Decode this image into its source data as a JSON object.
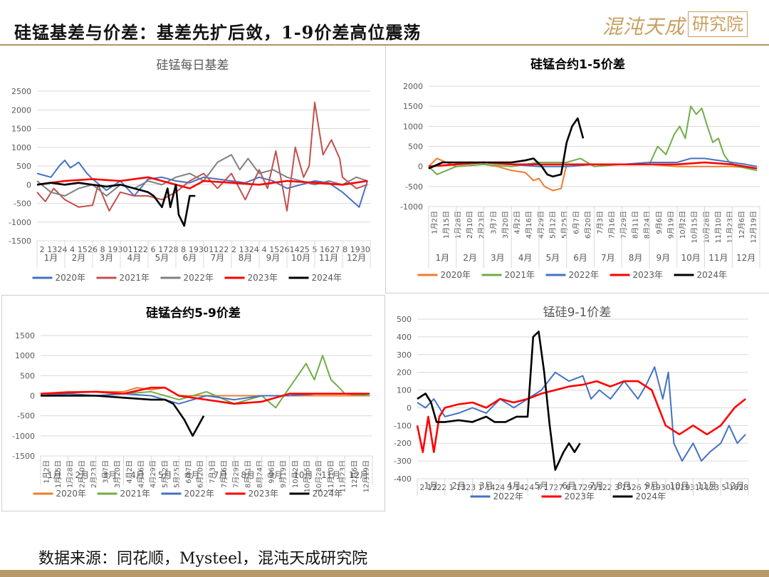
{
  "page": {
    "title": "硅锰基差与价差：基差先扩后敛，1-9价差高位震荡",
    "logo_main": "混沌天成",
    "logo_box": "研究院",
    "source": "数据来源：同花顺，Mysteel，混沌天成研究院"
  },
  "colors": {
    "2020年": "#ed7d31",
    "2021年": "#70ad47",
    "2022年": "#4472c4",
    "2023年": "#ff0000",
    "2024年": "#000000"
  },
  "chart_data": [
    {
      "type": "line",
      "title": "硅锰每日基差",
      "ylim": [
        -1500,
        2500
      ],
      "yticks": [
        -1500,
        -1000,
        -500,
        0,
        500,
        1000,
        1500,
        2000,
        2500
      ],
      "xticks": [
        "2",
        "13",
        "24",
        "4",
        "15",
        "26",
        "8",
        "19",
        "30",
        "11",
        "22",
        "6",
        "17",
        "28",
        "8",
        "19",
        "30",
        "11",
        "22",
        "2",
        "13",
        "24",
        "4",
        "15",
        "26",
        "14",
        "25",
        "5",
        "16",
        "27",
        "8",
        "19",
        "30"
      ],
      "months": [
        "1月",
        "2月",
        "3月",
        "4月",
        "5月",
        "6月",
        "7月",
        "8月",
        "9月",
        "10月",
        "11月",
        "12月"
      ],
      "colors": {
        "2020年": "#4472c4",
        "2021年": "#c0504d",
        "2022年": "#808080",
        "2023年": "#ff0000",
        "2024年": "#000000"
      },
      "series": [
        {
          "name": "2020年",
          "x": [
            0,
            0.5,
            0.8,
            1,
            1.2,
            1.5,
            1.8,
            2,
            2.5,
            3,
            3.5,
            4,
            4.5,
            5,
            5.5,
            6,
            6.5,
            7,
            7.5,
            8,
            8.5,
            9,
            9.5,
            10,
            10.5,
            11,
            11.3,
            11.6,
            11.9
          ],
          "y": [
            300,
            200,
            500,
            650,
            450,
            600,
            300,
            150,
            -150,
            100,
            -300,
            150,
            200,
            100,
            50,
            200,
            150,
            100,
            50,
            200,
            100,
            -100,
            0,
            100,
            50,
            -200,
            -400,
            -600,
            100
          ]
        },
        {
          "name": "2021年",
          "x": [
            0,
            0.3,
            0.6,
            1,
            1.5,
            2,
            2.2,
            2.6,
            3,
            3.5,
            4,
            4.5,
            5,
            5.5,
            6,
            6.5,
            7,
            7.5,
            8,
            8.3,
            8.6,
            9,
            9.3,
            9.6,
            9.8,
            10,
            10.3,
            10.6,
            10.9,
            11,
            11.5,
            11.9
          ],
          "y": [
            -200,
            -450,
            -100,
            -400,
            -600,
            -550,
            0,
            -700,
            -200,
            -300,
            -300,
            -400,
            -200,
            100,
            300,
            -100,
            300,
            -400,
            400,
            -100,
            900,
            -700,
            1000,
            200,
            500,
            2200,
            800,
            1200,
            700,
            200,
            -100,
            0
          ]
        },
        {
          "name": "2022年",
          "x": [
            0,
            0.5,
            1,
            1.5,
            2,
            2.5,
            3,
            3.5,
            4,
            4.5,
            5,
            5.5,
            6,
            6.5,
            7,
            7.3,
            7.6,
            8,
            8.5,
            9,
            9.5,
            10,
            10.5,
            11,
            11.5,
            11.9
          ],
          "y": [
            100,
            -200,
            -300,
            -100,
            0,
            -300,
            0,
            -100,
            100,
            0,
            200,
            300,
            100,
            600,
            800,
            400,
            700,
            300,
            400,
            200,
            100,
            0,
            100,
            0,
            200,
            100
          ]
        },
        {
          "name": "2023年",
          "x": [
            0,
            1,
            2,
            3,
            4,
            4.5,
            5,
            5.5,
            6,
            7,
            8,
            9,
            10,
            11,
            11.9
          ],
          "y": [
            0,
            100,
            150,
            100,
            200,
            100,
            0,
            -100,
            100,
            50,
            0,
            100,
            50,
            0,
            100
          ]
        },
        {
          "name": "2024年",
          "x": [
            0,
            0.5,
            1,
            1.5,
            2,
            2.5,
            3,
            3.5,
            4,
            4.2,
            4.5,
            4.7,
            4.8,
            5,
            5.1,
            5.3,
            5.5,
            5.7
          ],
          "y": [
            0,
            50,
            0,
            50,
            0,
            -50,
            0,
            -100,
            -200,
            -300,
            -600,
            -100,
            -600,
            0,
            -800,
            -1100,
            -300,
            -300
          ]
        }
      ],
      "legend": [
        "2020年",
        "2021年",
        "2022年",
        "2023年",
        "2024年"
      ]
    },
    {
      "type": "line",
      "title": "硅锰合约1-5价差",
      "ylim": [
        -1000,
        2000
      ],
      "yticks": [
        -1000,
        -500,
        0,
        500,
        1000,
        1500,
        2000
      ],
      "xticks": [
        "1月2日",
        "1月15日",
        "1月28日",
        "2月10日",
        "2月23日",
        "3月7日",
        "3月20日",
        "4月2日",
        "4月16日",
        "4月29日",
        "5月12日",
        "5月25日",
        "6月7日",
        "6月20日",
        "7月3日",
        "7月16日",
        "7月29日",
        "8月11日",
        "8月24日",
        "9月6日",
        "9月19日",
        "10月2日",
        "10月15日",
        "10月28日",
        "11月10日",
        "11月23日",
        "12月6日",
        "12月19日"
      ],
      "months": [
        "1月",
        "2月",
        "3月",
        "4月",
        "5月",
        "6月",
        "7月",
        "8月",
        "9月",
        "10月",
        "11月",
        "12月"
      ],
      "series": [
        {
          "name": "2020年",
          "x": [
            0,
            0.3,
            1,
            2,
            2.5,
            3,
            3.5,
            3.8,
            4,
            4.2,
            4.5,
            4.8,
            5,
            6,
            7,
            8,
            9,
            10,
            11,
            11.9
          ],
          "y": [
            0,
            200,
            0,
            50,
            0,
            -100,
            -150,
            -350,
            -300,
            -500,
            -600,
            -550,
            50,
            50,
            50,
            50,
            0,
            0,
            0,
            -50
          ]
        },
        {
          "name": "2021年",
          "x": [
            0,
            0.3,
            1,
            2,
            3,
            4,
            5,
            5.5,
            6,
            7,
            8,
            8.3,
            8.6,
            8.9,
            9.1,
            9.3,
            9.5,
            9.7,
            9.9,
            10.1,
            10.3,
            10.5,
            10.7,
            10.9,
            11.2,
            11.9
          ],
          "y": [
            0,
            -200,
            0,
            50,
            0,
            100,
            100,
            200,
            0,
            50,
            50,
            500,
            300,
            800,
            1000,
            700,
            1500,
            1300,
            1450,
            1000,
            600,
            700,
            300,
            100,
            0,
            -100
          ]
        },
        {
          "name": "2022年",
          "x": [
            0,
            1,
            2,
            3,
            4,
            5,
            6,
            7,
            8,
            9,
            9.5,
            10,
            10.5,
            11,
            11.5,
            11.9
          ],
          "y": [
            0,
            50,
            100,
            50,
            0,
            0,
            50,
            50,
            100,
            100,
            200,
            200,
            150,
            100,
            50,
            0
          ]
        },
        {
          "name": "2023年",
          "x": [
            0,
            1,
            2,
            3,
            4,
            5,
            6,
            7,
            8,
            9,
            10,
            11,
            11.9
          ],
          "y": [
            0,
            50,
            100,
            50,
            50,
            50,
            50,
            50,
            50,
            50,
            100,
            50,
            -50
          ]
        },
        {
          "name": "2024年",
          "x": [
            0,
            0.5,
            1,
            2,
            3,
            3.5,
            3.8,
            4.1,
            4.3,
            4.5,
            4.8,
            5,
            5.2,
            5.4,
            5.6
          ],
          "y": [
            -50,
            100,
            100,
            100,
            100,
            150,
            200,
            0,
            -200,
            -250,
            -200,
            600,
            1000,
            1200,
            700
          ]
        }
      ],
      "legend": [
        "2020年",
        "2021年",
        "2022年",
        "2023年",
        "2024年"
      ]
    },
    {
      "type": "line",
      "title": "硅锰合约5-9价差",
      "ylim": [
        -1500,
        1500
      ],
      "yticks": [
        -1500,
        -1000,
        -500,
        0,
        500,
        1000,
        1500
      ],
      "xticks": [
        "1月2日",
        "1月15日",
        "1月28日",
        "2月10日",
        "2月23日",
        "3月7日",
        "3月20日",
        "4月2日",
        "4月16日",
        "4月29日",
        "5月12日",
        "5月25日",
        "6月7日",
        "6月20日",
        "7月3日",
        "7月16日",
        "7月29日",
        "8月11日",
        "8月24日",
        "9月6日",
        "9月19日",
        "10月2日",
        "10月15日",
        "10月28日",
        "11月10日",
        "11月23日",
        "12月6日",
        "12月19日"
      ],
      "months": [
        "1月",
        "2月",
        "3月",
        "4月",
        "5月",
        "6月",
        "7月",
        "8月",
        "9月",
        "10月",
        "11月",
        "12月"
      ],
      "series": [
        {
          "name": "2020年",
          "x": [
            0,
            1,
            2,
            3,
            3.5,
            4,
            4.5,
            5,
            6,
            7,
            8,
            9,
            10,
            11,
            11.9
          ],
          "y": [
            50,
            100,
            100,
            100,
            200,
            150,
            200,
            0,
            0,
            0,
            0,
            0,
            0,
            0,
            0
          ]
        },
        {
          "name": "2021年",
          "x": [
            0,
            1,
            2,
            3,
            4,
            5,
            6,
            7,
            8,
            8.5,
            9,
            9.3,
            9.6,
            9.9,
            10.2,
            10.5,
            10.8,
            11,
            11.9
          ],
          "y": [
            0,
            50,
            0,
            50,
            100,
            -100,
            100,
            -200,
            0,
            -300,
            200,
            500,
            800,
            400,
            1000,
            400,
            200,
            50,
            0
          ]
        },
        {
          "name": "2022年",
          "x": [
            0,
            1,
            2,
            3,
            4,
            5,
            6,
            7,
            8,
            9,
            10,
            11,
            11.9
          ],
          "y": [
            0,
            50,
            0,
            50,
            0,
            -200,
            0,
            -100,
            0,
            0,
            50,
            50,
            50
          ]
        },
        {
          "name": "2023年",
          "x": [
            0,
            1,
            2,
            3,
            4,
            4.5,
            5,
            6,
            7,
            8,
            9,
            10,
            11,
            11.9
          ],
          "y": [
            50,
            80,
            100,
            50,
            200,
            200,
            0,
            -100,
            -200,
            -150,
            50,
            50,
            50,
            50
          ]
        },
        {
          "name": "2024年",
          "x": [
            0,
            1,
            2,
            3,
            4,
            4.5,
            4.8,
            5.2,
            5.5,
            5.7,
            5.9
          ],
          "y": [
            0,
            0,
            0,
            -50,
            -100,
            -100,
            -200,
            -600,
            -1000,
            -750,
            -500
          ]
        }
      ],
      "legend": [
        "2020年",
        "2021年",
        "2022年",
        "2023年",
        "2024年"
      ]
    },
    {
      "type": "line",
      "title": "锰硅9-1价差",
      "ylim": [
        -400,
        500
      ],
      "yticks": [
        -400,
        -300,
        -200,
        -100,
        0,
        100,
        200,
        300,
        400,
        500
      ],
      "xticks": [
        "2",
        "12",
        "22",
        "1",
        "13",
        "23",
        "1",
        "14",
        "24",
        "3",
        "14",
        "24",
        "7",
        "17",
        "27",
        "6",
        "17",
        "29",
        "11",
        "22",
        "3",
        "15",
        "26",
        "7",
        "19",
        "30",
        "10",
        "19",
        "31",
        "11",
        "23",
        "5",
        "16",
        "28"
      ],
      "months": [
        "1月",
        "2月",
        "3月",
        "4月",
        "5月",
        "6月",
        "7月",
        "8月",
        "9月",
        "10月",
        "11月",
        "12月"
      ],
      "series": [
        {
          "name": "2022年",
          "x": [
            0,
            0.3,
            0.6,
            1,
            1.5,
            2,
            2.5,
            3,
            3.5,
            4,
            4.5,
            5,
            5.5,
            6,
            6.3,
            6.6,
            7,
            7.5,
            8,
            8.3,
            8.6,
            8.9,
            9.1,
            9.3,
            9.6,
            10,
            10.3,
            10.6,
            11,
            11.3,
            11.6,
            11.9
          ],
          "y": [
            30,
            0,
            50,
            -50,
            -30,
            0,
            -30,
            50,
            0,
            50,
            100,
            200,
            150,
            180,
            50,
            100,
            50,
            150,
            50,
            130,
            230,
            50,
            200,
            -200,
            -300,
            -200,
            -300,
            -250,
            -200,
            -100,
            -200,
            -150
          ]
        },
        {
          "name": "2023年",
          "x": [
            0,
            0.2,
            0.4,
            0.6,
            0.8,
            1,
            1.5,
            2,
            2.5,
            3,
            3.5,
            4,
            4.5,
            5,
            5.5,
            6,
            6.5,
            7,
            7.5,
            8,
            8.5,
            9,
            9.5,
            10,
            10.5,
            11,
            11.5,
            11.9
          ],
          "y": [
            -100,
            -250,
            -50,
            -250,
            -50,
            0,
            20,
            30,
            0,
            50,
            30,
            50,
            80,
            100,
            120,
            130,
            150,
            120,
            150,
            150,
            100,
            -100,
            -150,
            -100,
            -150,
            -100,
            0,
            50
          ]
        },
        {
          "name": "2024年",
          "x": [
            0,
            0.3,
            0.5,
            0.7,
            1,
            1.5,
            2,
            2.5,
            2.8,
            3.2,
            3.6,
            4,
            4.2,
            4.4,
            4.6,
            4.8,
            5,
            5.3,
            5.5,
            5.7,
            5.9
          ],
          "y": [
            50,
            80,
            30,
            -80,
            -80,
            -70,
            -80,
            -50,
            -80,
            -80,
            -50,
            -50,
            400,
            430,
            200,
            -100,
            -350,
            -250,
            -200,
            -250,
            -200
          ]
        }
      ],
      "legend": [
        "2022年",
        "2023年",
        "2024年"
      ]
    }
  ]
}
